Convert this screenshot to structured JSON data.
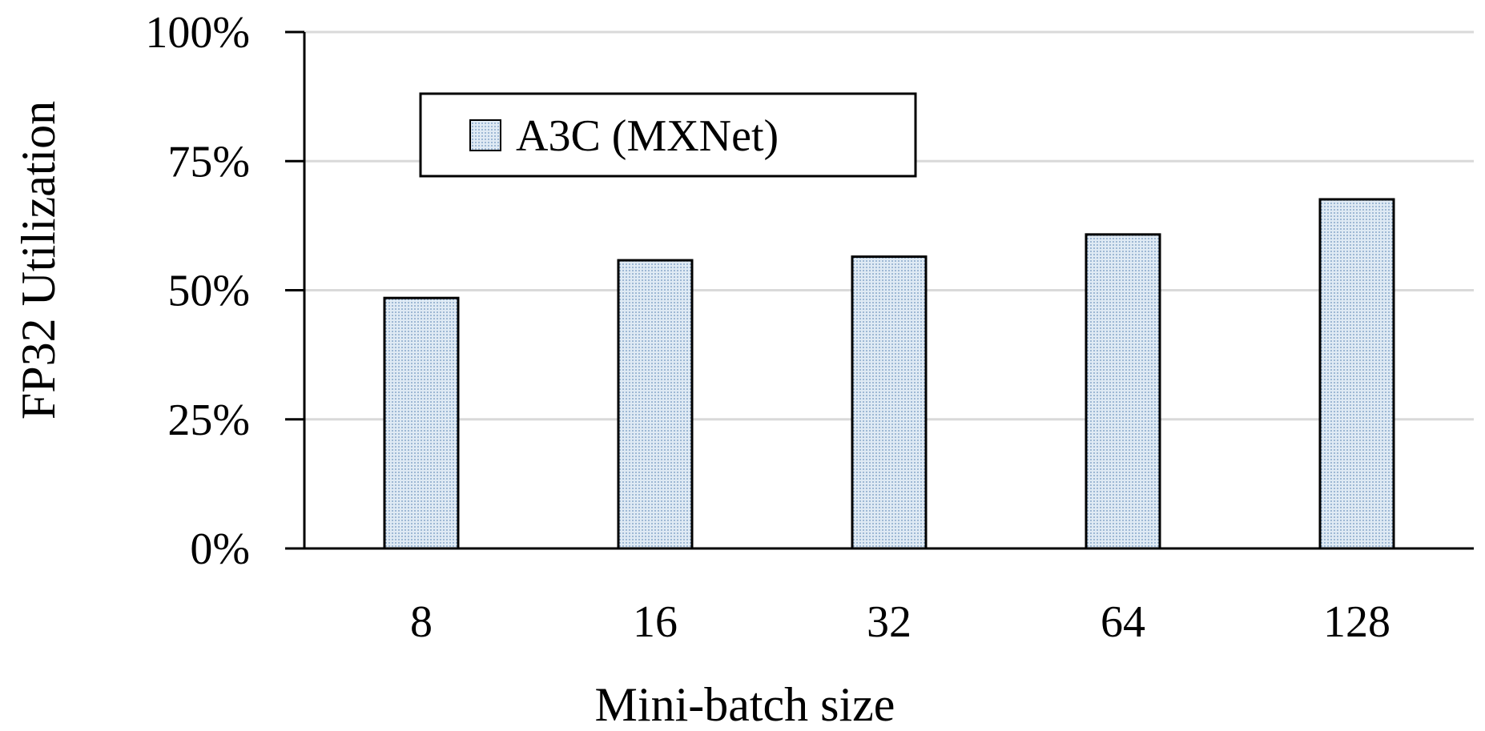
{
  "chart_data": {
    "type": "bar",
    "categories": [
      "8",
      "16",
      "32",
      "64",
      "128"
    ],
    "series": [
      {
        "name": "A3C (MXNet)",
        "values": [
          48.5,
          55.8,
          56.5,
          60.8,
          67.6
        ]
      }
    ],
    "xlabel": "Mini-batch size",
    "ylabel": "FP32 Utilization",
    "ylim": [
      0,
      100
    ],
    "yticks": [
      0,
      25,
      50,
      75,
      100
    ],
    "ytick_labels": [
      "0%",
      "25%",
      "50%",
      "75%",
      "100%"
    ],
    "grid": true,
    "legend_position": "top-left",
    "colors": {
      "bar_fill": "#dfeaf4",
      "bar_dots": "#6f95bd",
      "bar_edge": "#000000",
      "grid": "#d9d9d9",
      "axis": "#000000"
    }
  }
}
